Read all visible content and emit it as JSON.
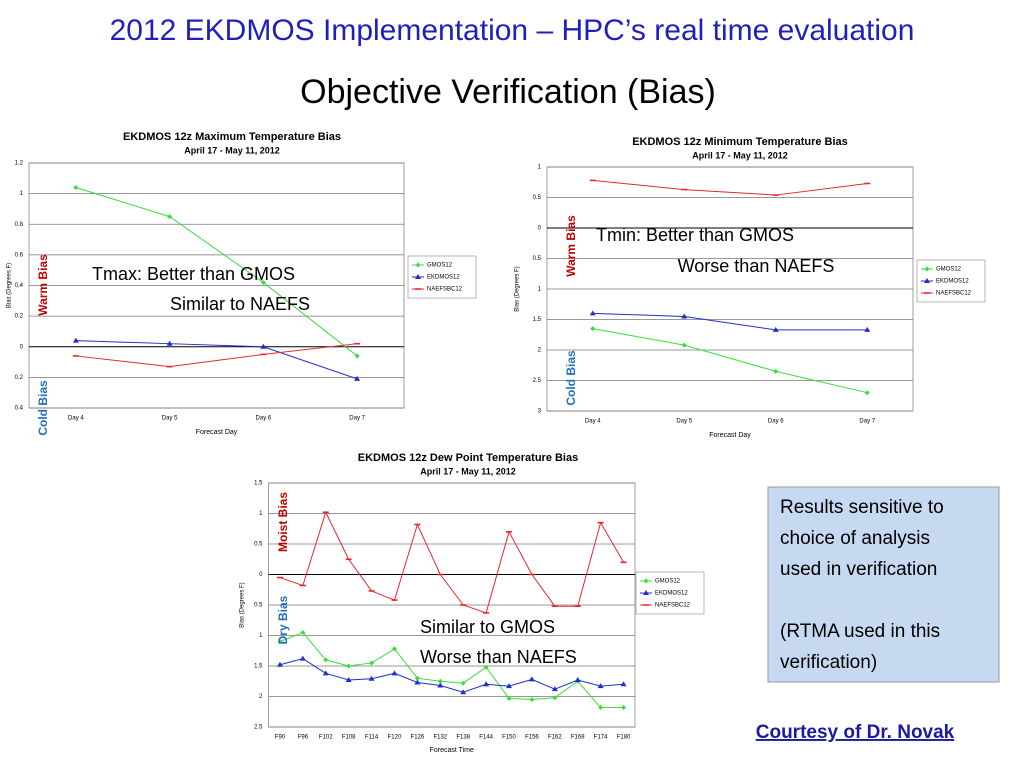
{
  "slide": {
    "title": "2012 EKDMOS Implementation – HPC’s real time evaluation",
    "subtitle": "Objective Verification (Bias)",
    "notes": [
      [
        "Results sensitive to",
        "choice of analysis",
        "used in verification"
      ],
      [
        "(RTMA used in this",
        "verification)"
      ]
    ],
    "credit": "Courtesy of Dr. Novak"
  },
  "chart_data": [
    {
      "type": "line",
      "title": "EKDMOS 12z Maximum Temperature Bias",
      "subtitle": "April 17 - May 11, 2012",
      "x_label": "Forecast Day",
      "y_label": "Bias (Degrees F)",
      "categories": [
        "Day 4",
        "Day 5",
        "Day 6",
        "Day 7"
      ],
      "series": [
        {
          "name": "GMOS12",
          "color": "#3ddc3d",
          "values": [
            1.04,
            0.85,
            0.42,
            -0.06
          ]
        },
        {
          "name": "EKDMOS12",
          "color": "#1f2fc8",
          "values": [
            0.04,
            0.02,
            0.0,
            -0.21
          ]
        },
        {
          "name": "NAEFSBC12",
          "color": "#e8262b",
          "values": [
            -0.06,
            -0.13,
            -0.05,
            0.02
          ]
        }
      ],
      "ylim": [
        -0.4,
        1.2
      ],
      "yticks": [
        {
          "value": -0.4,
          "label": "0.4"
        },
        {
          "value": -0.2,
          "label": "0.2"
        },
        0,
        0.2,
        0.4,
        0.6,
        0.8,
        1,
        1.2
      ],
      "grid": true,
      "legend": "right",
      "annotations": [
        "Warm Bias",
        "Cold Bias",
        "Tmax: Better than GMOS",
        "Similar to NAEFS"
      ]
    },
    {
      "type": "line",
      "title": "EKDMOS 12z Minimum Temperature Bias",
      "subtitle": "April 17 - May 11,  2012",
      "x_label": "Forecast Day",
      "y_label": "Bias (Degrees F)",
      "categories": [
        "Day 4",
        "Day 5",
        "Day 6",
        "Day 7"
      ],
      "series": [
        {
          "name": "GMOS12",
          "color": "#3ddc3d",
          "values": [
            -1.65,
            -1.92,
            -2.35,
            -2.7
          ]
        },
        {
          "name": "EKDMOS12",
          "color": "#1f2fc8",
          "values": [
            -1.4,
            -1.45,
            -1.67,
            -1.67
          ]
        },
        {
          "name": "NAEFSBC12",
          "color": "#e8262b",
          "values": [
            0.78,
            0.63,
            0.54,
            0.73
          ]
        }
      ],
      "ylim": [
        -3,
        1
      ],
      "yticks": [
        {
          "value": -3,
          "label": "3"
        },
        {
          "value": -2.5,
          "label": "2.5"
        },
        {
          "value": -2,
          "label": "2"
        },
        {
          "value": -1.5,
          "label": "1.5"
        },
        {
          "value": -1,
          "label": "1"
        },
        {
          "value": -0.5,
          "label": "0.5"
        },
        0,
        0.5,
        1
      ],
      "grid": true,
      "legend": "right",
      "annotations": [
        "Warm Bias",
        "Cold Bias",
        "Tmin: Better than GMOS",
        "Worse than NAEFS"
      ]
    },
    {
      "type": "line",
      "title": "EKDMOS 12z Dew Point Temperature Bias",
      "subtitle": "April 17 - May 11, 2012",
      "x_label": "Forecast Time",
      "y_label": "Bias (Degrees F)",
      "categories": [
        "F90",
        "F96",
        "F102",
        "F108",
        "F114",
        "F120",
        "F126",
        "F132",
        "F138",
        "F144",
        "F150",
        "F156",
        "F162",
        "F168",
        "F174",
        "F180"
      ],
      "series": [
        {
          "name": "GMOS12",
          "color": "#3ddc3d",
          "values": [
            -1.1,
            -0.95,
            -1.4,
            -1.5,
            -1.45,
            -1.22,
            -1.7,
            -1.75,
            -1.78,
            -1.52,
            -2.03,
            -2.05,
            -2.02,
            -1.75,
            -2.18,
            -2.18
          ]
        },
        {
          "name": "EKDMOS12",
          "color": "#1f2fc8",
          "values": [
            -1.48,
            -1.38,
            -1.62,
            -1.73,
            -1.71,
            -1.62,
            -1.77,
            -1.82,
            -1.93,
            -1.8,
            -1.83,
            -1.72,
            -1.88,
            -1.73,
            -1.83,
            -1.8
          ]
        },
        {
          "name": "NAEFSBC12",
          "color": "#e8262b",
          "values": [
            -0.05,
            -0.18,
            1.02,
            0.25,
            -0.27,
            -0.42,
            0.82,
            0.0,
            -0.5,
            -0.63,
            0.7,
            0.0,
            -0.52,
            -0.52,
            0.85,
            0.2
          ]
        }
      ],
      "ylim": [
        -2.5,
        1.5
      ],
      "yticks": [
        {
          "value": -2.5,
          "label": "2.5"
        },
        {
          "value": -2,
          "label": "2"
        },
        {
          "value": -1.5,
          "label": "1.5"
        },
        {
          "value": -1,
          "label": "1"
        },
        {
          "value": -0.5,
          "label": "0.5"
        },
        0,
        0.5,
        1,
        1.5
      ],
      "grid": true,
      "legend": "right",
      "annotations": [
        "Moist Bias",
        "Dry Bias",
        "Similar to GMOS",
        "Worse than NAEFS"
      ]
    }
  ]
}
